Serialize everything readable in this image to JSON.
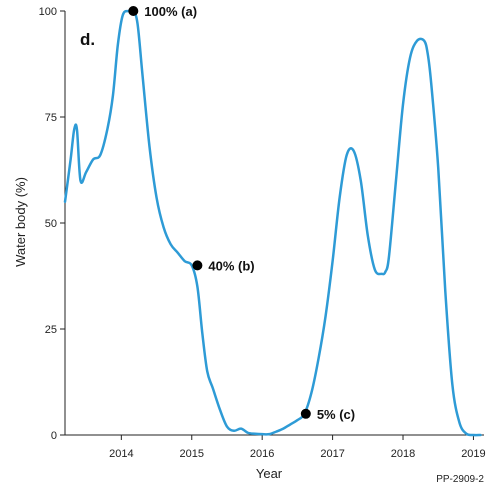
{
  "chart_data": {
    "type": "line",
    "panel_label": "d.",
    "xlabel": "Year",
    "ylabel": "Water body (%)",
    "xlim": [
      2013.2,
      2019.15
    ],
    "ylim": [
      0,
      100
    ],
    "x_ticks": [
      2014,
      2015,
      2016,
      2017,
      2018,
      2019
    ],
    "x_tick_labels": [
      "2014",
      "2015",
      "2016",
      "2017",
      "2018",
      "2019"
    ],
    "y_ticks": [
      0,
      25,
      50,
      75,
      100
    ],
    "y_tick_labels": [
      "0",
      "25",
      "50",
      "75",
      "100"
    ],
    "grid": false,
    "line_color": "#2e9bd6",
    "series": [
      {
        "x": [
          2013.2,
          2013.28,
          2013.33,
          2013.37,
          2013.42,
          2013.5,
          2013.6,
          2013.7,
          2013.8,
          2013.88,
          2013.95,
          2014.02,
          2014.1,
          2014.17,
          2014.23,
          2014.3,
          2014.4,
          2014.5,
          2014.6,
          2014.7,
          2014.8,
          2014.9,
          2015.0,
          2015.08,
          2015.15,
          2015.22,
          2015.3,
          2015.4,
          2015.5,
          2015.6,
          2015.7,
          2015.8,
          2015.9,
          2016.0,
          2016.1,
          2016.2,
          2016.3,
          2016.4,
          2016.5,
          2016.6,
          2016.7,
          2016.8,
          2016.9,
          2017.0,
          2017.1,
          2017.2,
          2017.3,
          2017.4,
          2017.5,
          2017.6,
          2017.7,
          2017.75,
          2017.8,
          2017.9,
          2018.0,
          2018.1,
          2018.2,
          2018.3,
          2018.35,
          2018.4,
          2018.5,
          2018.6,
          2018.7,
          2018.8,
          2018.9,
          2019.0,
          2019.1
        ],
        "y": [
          55,
          65,
          72,
          72,
          60,
          62,
          65,
          66,
          72,
          80,
          92,
          99,
          100,
          100,
          97,
          85,
          68,
          56,
          49,
          45,
          43,
          41,
          40,
          35,
          24,
          15,
          11,
          6,
          2,
          1,
          1.5,
          0.5,
          0.3,
          0.2,
          0.2,
          0.8,
          1.5,
          2.5,
          3.5,
          5,
          10,
          18,
          28,
          41,
          56,
          66,
          67,
          60,
          47,
          39,
          38,
          38.5,
          42,
          60,
          78,
          89,
          93,
          93,
          90,
          83,
          63,
          34,
          12,
          3,
          0.3,
          0,
          0
        ]
      }
    ],
    "annotations": [
      {
        "x": 2014.17,
        "y": 100,
        "label": "100% (a)"
      },
      {
        "x": 2015.08,
        "y": 40,
        "label": "40% (b)"
      },
      {
        "x": 2016.62,
        "y": 5,
        "label": "5% (c)"
      }
    ]
  },
  "credit": "PP-2909-2"
}
